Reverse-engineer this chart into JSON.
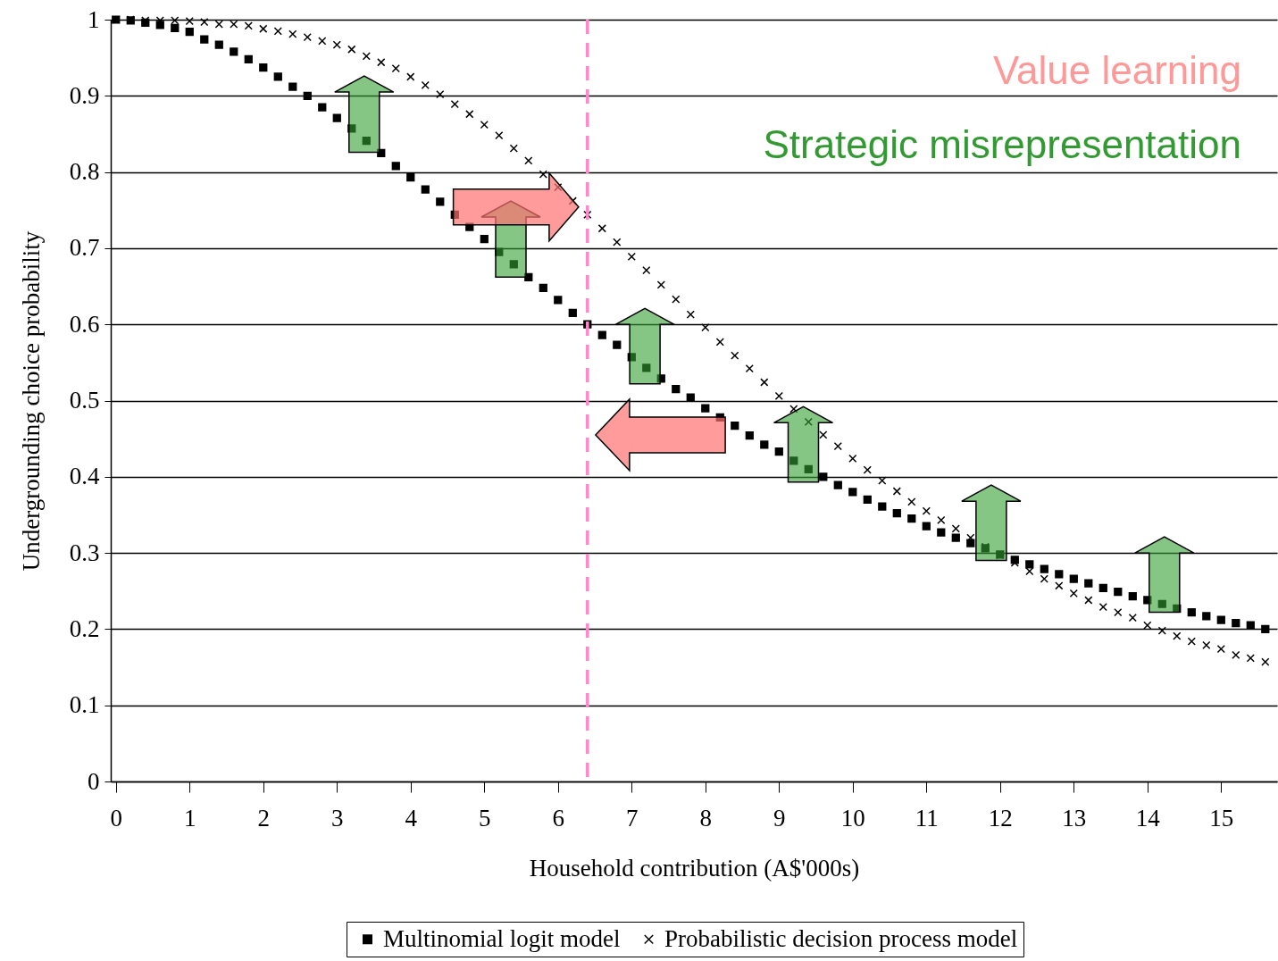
{
  "chart_data": {
    "type": "scatter",
    "xlabel": "Household contribution (A$'000s)",
    "ylabel": "Undergrounding choice probability",
    "x": [
      0,
      0.2,
      0.4,
      0.6,
      0.8,
      1,
      1.2,
      1.4,
      1.6,
      1.8,
      2,
      2.2,
      2.4,
      2.6,
      2.8,
      3,
      3.2,
      3.4,
      3.6,
      3.8,
      4,
      4.2,
      4.4,
      4.6,
      4.8,
      5,
      5.2,
      5.4,
      5.6,
      5.8,
      6,
      6.2,
      6.4,
      6.6,
      6.8,
      7,
      7.2,
      7.4,
      7.6,
      7.8,
      8,
      8.2,
      8.4,
      8.6,
      8.8,
      9,
      9.2,
      9.4,
      9.6,
      9.8,
      10,
      10.2,
      10.4,
      10.6,
      10.8,
      11,
      11.2,
      11.4,
      11.6,
      11.8,
      12,
      12.2,
      12.4,
      12.6,
      12.8,
      13,
      13.2,
      13.4,
      13.6,
      13.8,
      14,
      14.2,
      14.4,
      14.6,
      14.8,
      15,
      15.2,
      15.4,
      15.6
    ],
    "series": [
      {
        "name": "Multinomial logit model",
        "color": "#000000",
        "marker": "square",
        "values": [
          1.0,
          0.999,
          0.996,
          0.993,
          0.989,
          0.984,
          0.974,
          0.967,
          0.958,
          0.948,
          0.937,
          0.925,
          0.912,
          0.9,
          0.885,
          0.871,
          0.857,
          0.841,
          0.825,
          0.808,
          0.793,
          0.777,
          0.761,
          0.744,
          0.728,
          0.712,
          0.695,
          0.679,
          0.662,
          0.648,
          0.632,
          0.615,
          0.6,
          0.586,
          0.573,
          0.557,
          0.543,
          0.529,
          0.515,
          0.504,
          0.49,
          0.478,
          0.467,
          0.454,
          0.442,
          0.433,
          0.421,
          0.41,
          0.4,
          0.389,
          0.38,
          0.37,
          0.361,
          0.352,
          0.345,
          0.335,
          0.327,
          0.32,
          0.313,
          0.306,
          0.298,
          0.291,
          0.285,
          0.279,
          0.272,
          0.266,
          0.26,
          0.254,
          0.249,
          0.243,
          0.238,
          0.233,
          0.227,
          0.222,
          0.217,
          0.212,
          0.208,
          0.205,
          0.2
        ]
      },
      {
        "name": "Probabilistic decision process model",
        "color": "#000000",
        "marker": "cross",
        "values": [
          1.0,
          1.0,
          0.999,
          0.999,
          0.999,
          0.998,
          0.997,
          0.994,
          0.994,
          0.992,
          0.988,
          0.985,
          0.981,
          0.977,
          0.972,
          0.967,
          0.961,
          0.952,
          0.944,
          0.936,
          0.925,
          0.914,
          0.902,
          0.889,
          0.876,
          0.862,
          0.848,
          0.831,
          0.815,
          0.797,
          0.78,
          0.762,
          0.744,
          0.726,
          0.708,
          0.689,
          0.671,
          0.652,
          0.633,
          0.613,
          0.596,
          0.577,
          0.559,
          0.542,
          0.524,
          0.506,
          0.489,
          0.472,
          0.455,
          0.44,
          0.424,
          0.409,
          0.395,
          0.381,
          0.367,
          0.355,
          0.343,
          0.332,
          0.32,
          0.308,
          0.297,
          0.287,
          0.276,
          0.266,
          0.257,
          0.247,
          0.238,
          0.229,
          0.222,
          0.215,
          0.205,
          0.198,
          0.191,
          0.184,
          0.179,
          0.174,
          0.166,
          0.162,
          0.157
        ]
      }
    ],
    "xlim": [
      -0.07,
      15.76
    ],
    "xticks": [
      0,
      1,
      2,
      3,
      4,
      5,
      6,
      7,
      8,
      9,
      10,
      11,
      12,
      13,
      14,
      15
    ],
    "ylim": [
      0,
      1
    ],
    "yticks": [
      0,
      0.1,
      0.2,
      0.3,
      0.4,
      0.5,
      0.6,
      0.7,
      0.8,
      0.9,
      1
    ],
    "grid": "y",
    "legend": "bottom",
    "ref_lines": [
      {
        "axis": "x",
        "value": 6.4,
        "color": "#ff88cc",
        "line_style": "dashed"
      }
    ],
    "annotations": [
      "Value learning",
      "Strategic misrepresentation"
    ]
  }
}
